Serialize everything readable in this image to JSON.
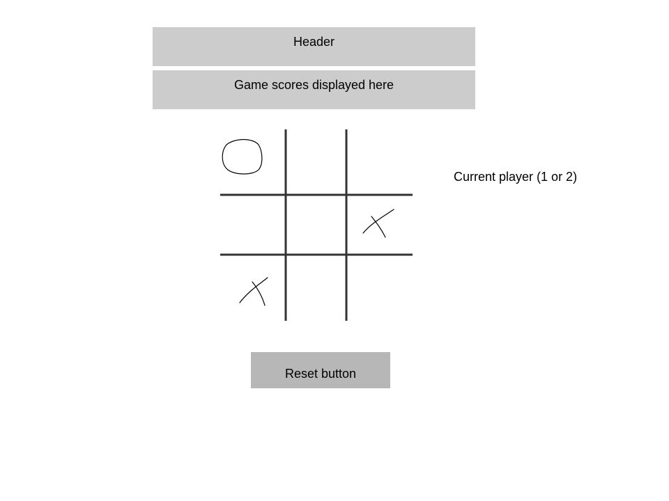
{
  "header": {
    "title": "Header"
  },
  "scores": {
    "text": "Game scores displayed here"
  },
  "status": {
    "current_player_text": "Current player (1 or 2)"
  },
  "controls": {
    "reset_label": "Reset button"
  },
  "board": {
    "cells": [
      "O",
      "",
      "",
      "",
      "",
      "X",
      "X",
      "",
      ""
    ]
  },
  "colors": {
    "bar_background": "#cccccc",
    "reset_background": "#b7b7b7",
    "grid_line": "#333333",
    "mark_stroke": "#000000"
  }
}
